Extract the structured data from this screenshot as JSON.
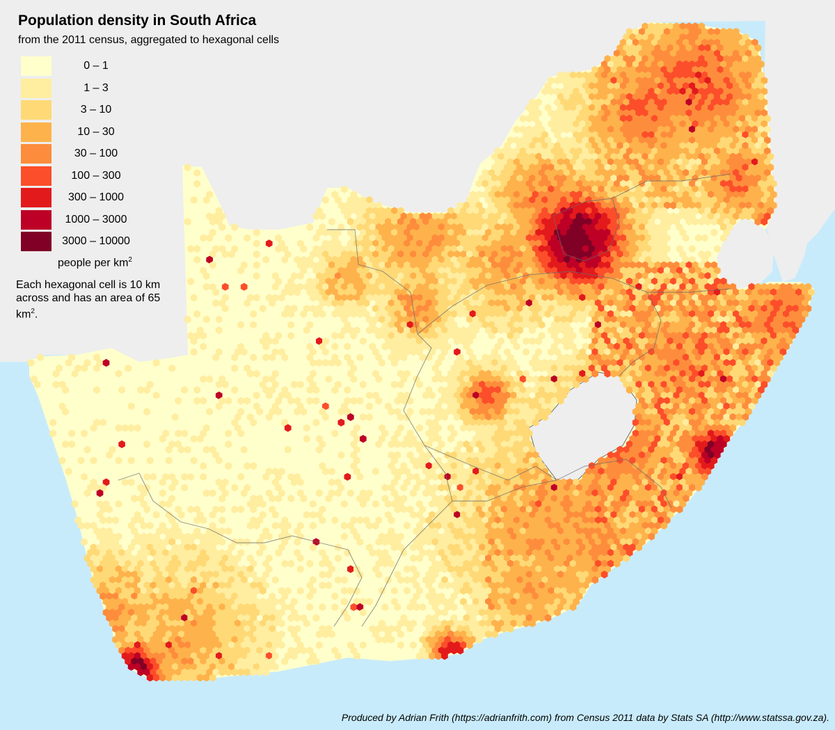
{
  "title": "Population density in South Africa",
  "subtitle": "from the 2011 census, aggregated to hexagonal cells",
  "legend": {
    "items": [
      {
        "label": "0 – 1",
        "color": "#ffffcc"
      },
      {
        "label": "1 – 3",
        "color": "#ffeda0"
      },
      {
        "label": "3 – 10",
        "color": "#fed976"
      },
      {
        "label": "10 – 30",
        "color": "#feb24c"
      },
      {
        "label": "30 – 100",
        "color": "#fd8d3c"
      },
      {
        "label": "100 – 300",
        "color": "#fc4e2a"
      },
      {
        "label": "300 – 1000",
        "color": "#e31a1c"
      },
      {
        "label": "1000 – 3000",
        "color": "#bd0026"
      },
      {
        "label": "3000 – 10000",
        "color": "#800026"
      }
    ],
    "unit_text": "people per km",
    "unit_superscript": "2"
  },
  "note": {
    "text": "Each hexagonal cell is 10 km across and has an area of 65 km",
    "superscript": "2",
    "suffix": "."
  },
  "credit": "Produced by Adrian Frith (https://adrianfrith.com) from Census 2011 data by Stats SA (http://www.statssa.gov.za).",
  "colors": {
    "ocean": "#c8ebfb",
    "neighbour_land": "#eeeeee",
    "base_land": "#ffffcc",
    "border": "#6b6b6b"
  }
}
